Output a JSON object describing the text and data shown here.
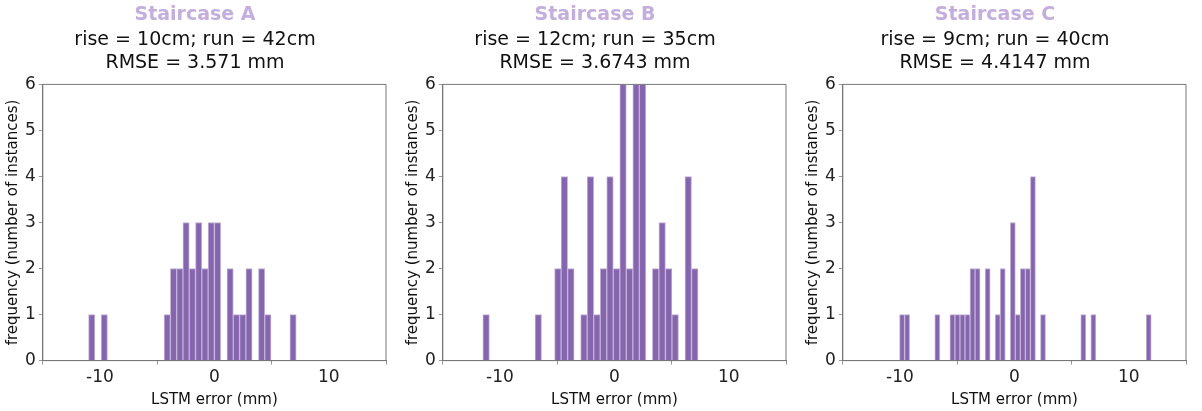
{
  "chart_data": [
    {
      "type": "histogram",
      "title": "Staircase A",
      "subtitle": "rise = 10cm; run = 42cm\nRMSE = 3.571 mm",
      "xlabel": "LSTM error (mm)",
      "ylabel": "frequency (number of instances)",
      "color": "#8565ad",
      "grid": false,
      "xlim": [
        -15,
        15
      ],
      "xticks": [
        -10,
        0,
        10
      ],
      "ylim": [
        0,
        6
      ],
      "yticks": [
        0,
        1,
        2,
        3,
        4,
        5,
        6
      ],
      "bins": [
        -11,
        -10.45,
        -9.9,
        -9.35,
        -8.8,
        -8.25,
        -7.7,
        -7.15,
        -6.6,
        -6.05,
        -5.5,
        -4.95,
        -4.4,
        -3.85,
        -3.3,
        -2.75,
        -2.2,
        -1.65,
        -1.1,
        -0.55,
        0,
        0.55,
        1.1,
        1.65,
        2.2,
        2.75,
        3.3,
        3.85,
        4.4,
        4.95,
        5.5,
        6.05,
        6.6,
        7.15
      ],
      "values": [
        1,
        0,
        1,
        0,
        0,
        0,
        0,
        0,
        0,
        0,
        0,
        0,
        1,
        2,
        2,
        3,
        2,
        3,
        2,
        3,
        3,
        0,
        2,
        1,
        1,
        2,
        0,
        2,
        1,
        0,
        0,
        0,
        1
      ]
    },
    {
      "type": "histogram",
      "title": "Staircase B",
      "subtitle": "rise = 12cm; run = 35cm\nRMSE = 3.6743 mm",
      "xlabel": "LSTM error (mm)",
      "ylabel": "frequency (number of instances)",
      "color": "#8565ad",
      "grid": false,
      "xlim": [
        -15,
        15
      ],
      "xticks": [
        -10,
        0,
        10
      ],
      "ylim": [
        0,
        6
      ],
      "yticks": [
        0,
        1,
        2,
        3,
        4,
        5,
        6
      ],
      "bins": [
        -11.5,
        -10.93,
        -10.36,
        -9.79,
        -9.22,
        -8.65,
        -8.08,
        -7.51,
        -6.94,
        -6.37,
        -5.8,
        -5.23,
        -4.66,
        -4.09,
        -3.52,
        -2.95,
        -2.38,
        -1.81,
        -1.24,
        -0.67,
        -0.1,
        0.47,
        1.04,
        1.61,
        2.18,
        2.75,
        3.32,
        3.89,
        4.46,
        5.03,
        5.6,
        6.17,
        6.74,
        7.31
      ],
      "values": [
        1,
        0,
        0,
        0,
        0,
        0,
        0,
        0,
        1,
        0,
        0,
        2,
        4,
        2,
        0,
        1,
        4,
        1,
        2,
        4,
        2,
        6,
        2,
        6,
        6,
        0,
        2,
        3,
        2,
        1,
        0,
        4,
        2
      ]
    },
    {
      "type": "histogram",
      "title": "Staircase C",
      "subtitle": "rise = 9cm; run = 40cm\nRMSE = 4.4147 mm",
      "xlabel": "LSTM error (mm)",
      "ylabel": "frequency (number of instances)",
      "color": "#8565ad",
      "grid": false,
      "xlim": [
        -15,
        15
      ],
      "xticks": [
        -10,
        0,
        10
      ],
      "ylim": [
        0,
        6
      ],
      "yticks": [
        0,
        1,
        2,
        3,
        4,
        5,
        6
      ],
      "bins": [
        -10.04,
        -9.6,
        -9.16,
        -8.72,
        -8.28,
        -7.84,
        -7.4,
        -6.96,
        -6.52,
        -6.08,
        -5.64,
        -5.2,
        -4.76,
        -4.32,
        -3.88,
        -3.44,
        -3,
        -2.56,
        -2.12,
        -1.68,
        -1.24,
        -0.8,
        -0.36,
        0.08,
        0.52,
        0.96,
        1.4,
        1.84,
        2.28,
        2.72,
        3.16,
        3.6,
        4.04,
        4.48,
        4.92,
        5.36,
        5.8,
        6.24,
        6.68,
        7.12,
        7.56,
        8,
        8.44,
        8.88,
        9.32,
        9.76,
        10.2,
        10.64,
        11.08,
        11.52,
        11.96
      ],
      "values": [
        1,
        1,
        0,
        0,
        0,
        0,
        0,
        1,
        0,
        0,
        1,
        1,
        1,
        1,
        2,
        2,
        0,
        2,
        0,
        1,
        2,
        0,
        3,
        1,
        2,
        2,
        4,
        0,
        1,
        0,
        0,
        0,
        0,
        0,
        0,
        0,
        1,
        0,
        1,
        0,
        0,
        0,
        0,
        0,
        0,
        0,
        0,
        0,
        0,
        1
      ]
    }
  ]
}
